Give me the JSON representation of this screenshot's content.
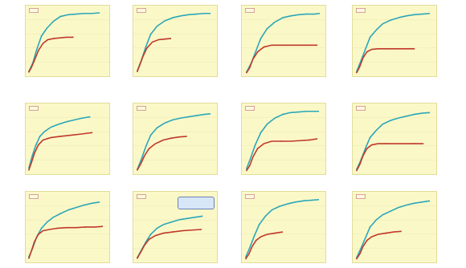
{
  "chart_data": [
    {
      "type": "line",
      "tag": "",
      "ylabel": "",
      "xlabel": "",
      "series": [
        {
          "color": "#2ba7b8",
          "x": [
            2,
            7,
            12,
            18,
            25,
            33,
            42,
            52,
            62,
            72,
            82,
            92
          ],
          "y": [
            4,
            18,
            40,
            62,
            75,
            86,
            94,
            97,
            98,
            99,
            99,
            100
          ]
        },
        {
          "color": "#c0392b",
          "x": [
            2,
            5,
            9,
            14,
            20,
            26,
            34,
            42,
            50,
            58
          ],
          "y": [
            3,
            10,
            22,
            38,
            50,
            56,
            58,
            59,
            60,
            60
          ]
        }
      ]
    },
    {
      "type": "line",
      "tag": "",
      "ylabel": "",
      "xlabel": "",
      "series": [
        {
          "color": "#2ba7b8",
          "x": [
            3,
            8,
            14,
            20,
            28,
            38,
            48,
            58,
            68,
            78,
            88,
            96
          ],
          "y": [
            5,
            22,
            45,
            65,
            78,
            87,
            92,
            95,
            97,
            98,
            99,
            99
          ]
        },
        {
          "color": "#c0392b",
          "x": [
            3,
            6,
            10,
            15,
            22,
            30,
            38,
            46
          ],
          "y": [
            4,
            14,
            28,
            42,
            52,
            56,
            57,
            58
          ]
        }
      ]
    },
    {
      "type": "line",
      "tag": "",
      "ylabel": "",
      "xlabel": "",
      "series": [
        {
          "color": "#2ba7b8",
          "x": [
            4,
            10,
            16,
            22,
            30,
            40,
            50,
            60,
            70,
            80,
            90,
            97
          ],
          "y": [
            3,
            18,
            38,
            58,
            74,
            85,
            92,
            95,
            97,
            98,
            98,
            99
          ]
        },
        {
          "color": "#c0392b",
          "x": [
            4,
            8,
            12,
            18,
            26,
            36,
            48,
            60,
            72,
            84,
            94
          ],
          "y": [
            2,
            10,
            24,
            36,
            44,
            47,
            47,
            47,
            47,
            47,
            47
          ]
        }
      ]
    },
    {
      "type": "line",
      "tag": "",
      "ylabel": "",
      "xlabel": "",
      "series": [
        {
          "color": "#2ba7b8",
          "x": [
            3,
            8,
            14,
            20,
            28,
            36,
            46,
            56,
            66,
            76,
            86,
            96
          ],
          "y": [
            4,
            20,
            40,
            60,
            72,
            82,
            88,
            92,
            95,
            97,
            98,
            99
          ]
        },
        {
          "color": "#c0392b",
          "x": [
            3,
            7,
            11,
            16,
            22,
            30,
            40,
            52,
            64,
            76
          ],
          "y": [
            2,
            12,
            26,
            36,
            40,
            41,
            41,
            41,
            41,
            41
          ]
        }
      ]
    },
    {
      "type": "line",
      "tag": "",
      "ylabel": "",
      "xlabel": "",
      "series": [
        {
          "color": "#2ba7b8",
          "x": [
            2,
            6,
            11,
            16,
            22,
            30,
            40,
            50,
            60,
            70,
            80
          ],
          "y": [
            6,
            25,
            44,
            58,
            66,
            73,
            78,
            82,
            85,
            88,
            90
          ]
        },
        {
          "color": "#c0392b",
          "x": [
            2,
            5,
            9,
            14,
            20,
            30,
            42,
            56,
            70,
            82
          ],
          "y": [
            3,
            14,
            30,
            44,
            52,
            56,
            58,
            60,
            62,
            64
          ]
        }
      ]
    },
    {
      "type": "line",
      "tag": "",
      "ylabel": "",
      "xlabel": "",
      "series": [
        {
          "color": "#2ba7b8",
          "x": [
            3,
            8,
            14,
            20,
            28,
            38,
            48,
            58,
            68,
            78,
            88,
            96
          ],
          "y": [
            4,
            20,
            42,
            60,
            72,
            80,
            85,
            88,
            90,
            92,
            94,
            95
          ]
        },
        {
          "color": "#c0392b",
          "x": [
            3,
            7,
            12,
            18,
            26,
            36,
            46,
            56,
            66
          ],
          "y": [
            3,
            12,
            26,
            38,
            46,
            52,
            55,
            57,
            58
          ]
        }
      ]
    },
    {
      "type": "line",
      "tag": "",
      "ylabel": "",
      "xlabel": "",
      "series": [
        {
          "color": "#2ba7b8",
          "x": [
            4,
            9,
            15,
            22,
            30,
            40,
            50,
            60,
            70,
            80,
            90,
            96
          ],
          "y": [
            5,
            22,
            44,
            64,
            78,
            88,
            94,
            97,
            98,
            99,
            99,
            99
          ]
        },
        {
          "color": "#c0392b",
          "x": [
            4,
            8,
            12,
            18,
            26,
            36,
            48,
            60,
            72,
            84,
            94
          ],
          "y": [
            2,
            10,
            24,
            38,
            46,
            50,
            50,
            50,
            51,
            52,
            54
          ]
        }
      ]
    },
    {
      "type": "line",
      "tag": "",
      "ylabel": "",
      "xlabel": "",
      "series": [
        {
          "color": "#2ba7b8",
          "x": [
            3,
            8,
            14,
            20,
            28,
            36,
            46,
            56,
            66,
            76,
            86,
            96
          ],
          "y": [
            4,
            18,
            38,
            56,
            68,
            78,
            84,
            88,
            91,
            94,
            96,
            97
          ]
        },
        {
          "color": "#c0392b",
          "x": [
            3,
            7,
            11,
            16,
            22,
            30,
            40,
            52,
            64,
            76,
            88
          ],
          "y": [
            2,
            12,
            26,
            38,
            44,
            46,
            46,
            46,
            46,
            46,
            46
          ]
        }
      ]
    },
    {
      "type": "line",
      "tag": "",
      "ylabel": "",
      "xlabel": "",
      "series": [
        {
          "color": "#2ba7b8",
          "x": [
            2,
            7,
            12,
            18,
            25,
            33,
            42,
            52,
            62,
            72,
            82,
            92
          ],
          "y": [
            5,
            20,
            38,
            52,
            62,
            70,
            76,
            82,
            86,
            90,
            93,
            95
          ]
        },
        {
          "color": "#c0392b",
          "x": [
            2,
            5,
            9,
            14,
            20,
            28,
            38,
            50,
            62,
            74,
            86,
            96
          ],
          "y": [
            3,
            14,
            30,
            42,
            48,
            50,
            52,
            53,
            53,
            54,
            54,
            55
          ]
        }
      ]
    },
    {
      "type": "line",
      "tag": "",
      "ylabel": "",
      "xlabel": "",
      "series": [
        {
          "color": "#2ba7b8",
          "x": [
            3,
            8,
            14,
            20,
            28,
            36,
            46,
            56,
            66,
            76,
            86
          ],
          "y": [
            4,
            16,
            30,
            42,
            52,
            58,
            62,
            66,
            68,
            70,
            72
          ]
        },
        {
          "color": "#c0392b",
          "x": [
            3,
            7,
            12,
            18,
            26,
            36,
            48,
            60,
            72,
            84
          ],
          "y": [
            3,
            12,
            24,
            34,
            40,
            44,
            46,
            48,
            49,
            50
          ]
        }
      ]
    },
    {
      "type": "line",
      "tag": "",
      "ylabel": "",
      "xlabel": "",
      "series": [
        {
          "color": "#2ba7b8",
          "x": [
            3,
            8,
            14,
            20,
            28,
            36,
            46,
            56,
            66,
            76,
            86,
            96
          ],
          "y": [
            5,
            20,
            40,
            58,
            72,
            82,
            88,
            92,
            95,
            97,
            98,
            99
          ]
        },
        {
          "color": "#c0392b",
          "x": [
            3,
            7,
            11,
            16,
            22,
            30,
            40,
            50
          ],
          "y": [
            2,
            10,
            22,
            32,
            38,
            42,
            44,
            46
          ]
        }
      ]
    },
    {
      "type": "line",
      "tag": "",
      "ylabel": "",
      "xlabel": "",
      "series": [
        {
          "color": "#2ba7b8",
          "x": [
            3,
            8,
            14,
            20,
            28,
            36,
            46,
            56,
            66,
            76,
            86,
            96
          ],
          "y": [
            4,
            18,
            36,
            54,
            66,
            74,
            80,
            86,
            90,
            93,
            95,
            97
          ]
        },
        {
          "color": "#c0392b",
          "x": [
            3,
            7,
            11,
            16,
            22,
            30,
            40,
            50,
            60
          ],
          "y": [
            2,
            10,
            22,
            32,
            38,
            42,
            44,
            46,
            47
          ]
        }
      ]
    }
  ],
  "callout": {
    "text": ""
  },
  "notes": {
    "a": "",
    "b": ""
  }
}
